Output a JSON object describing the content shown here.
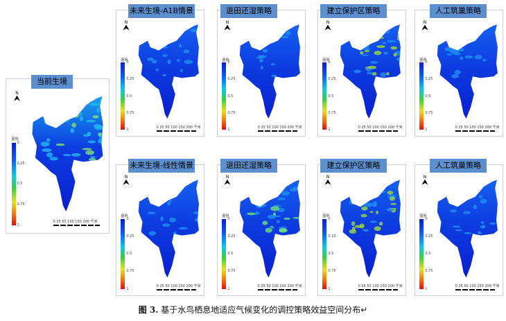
{
  "figure": {
    "caption_label": "图 3.",
    "caption_text": "基于水鸟栖息地适应气候变化的调控策略效益空间分布↵",
    "legend_title": "图例",
    "legend_ticks": [
      "0",
      "0.25",
      "0.5",
      "0.75",
      "1"
    ],
    "scale_ticks": "0 25 50   100   150  200",
    "scale_unit": "千米",
    "north_label": "N",
    "colors": {
      "low": "#0a1fd0",
      "mid_low": "#11c8e8",
      "mid": "#38d040",
      "mid_high": "#e8e020",
      "high": "#e01010",
      "title_bg": "#5b8fd0"
    },
    "panels": [
      {
        "title": "当前生境",
        "variant": "current"
      },
      {
        "title": "未来生境-A1B情景",
        "variant": "future"
      },
      {
        "title": "退田还湿策略",
        "variant": "wetland"
      },
      {
        "title": "建立保护区策略",
        "variant": "reserve"
      },
      {
        "title": "人工筑巢策略",
        "variant": "nest"
      },
      {
        "title": "未来生境-线性情景",
        "variant": "future"
      },
      {
        "title": "退田还湿策略",
        "variant": "wetland2"
      },
      {
        "title": "建立保护区策略",
        "variant": "reserve"
      },
      {
        "title": "人工筑巢策略",
        "variant": "nest"
      }
    ]
  }
}
